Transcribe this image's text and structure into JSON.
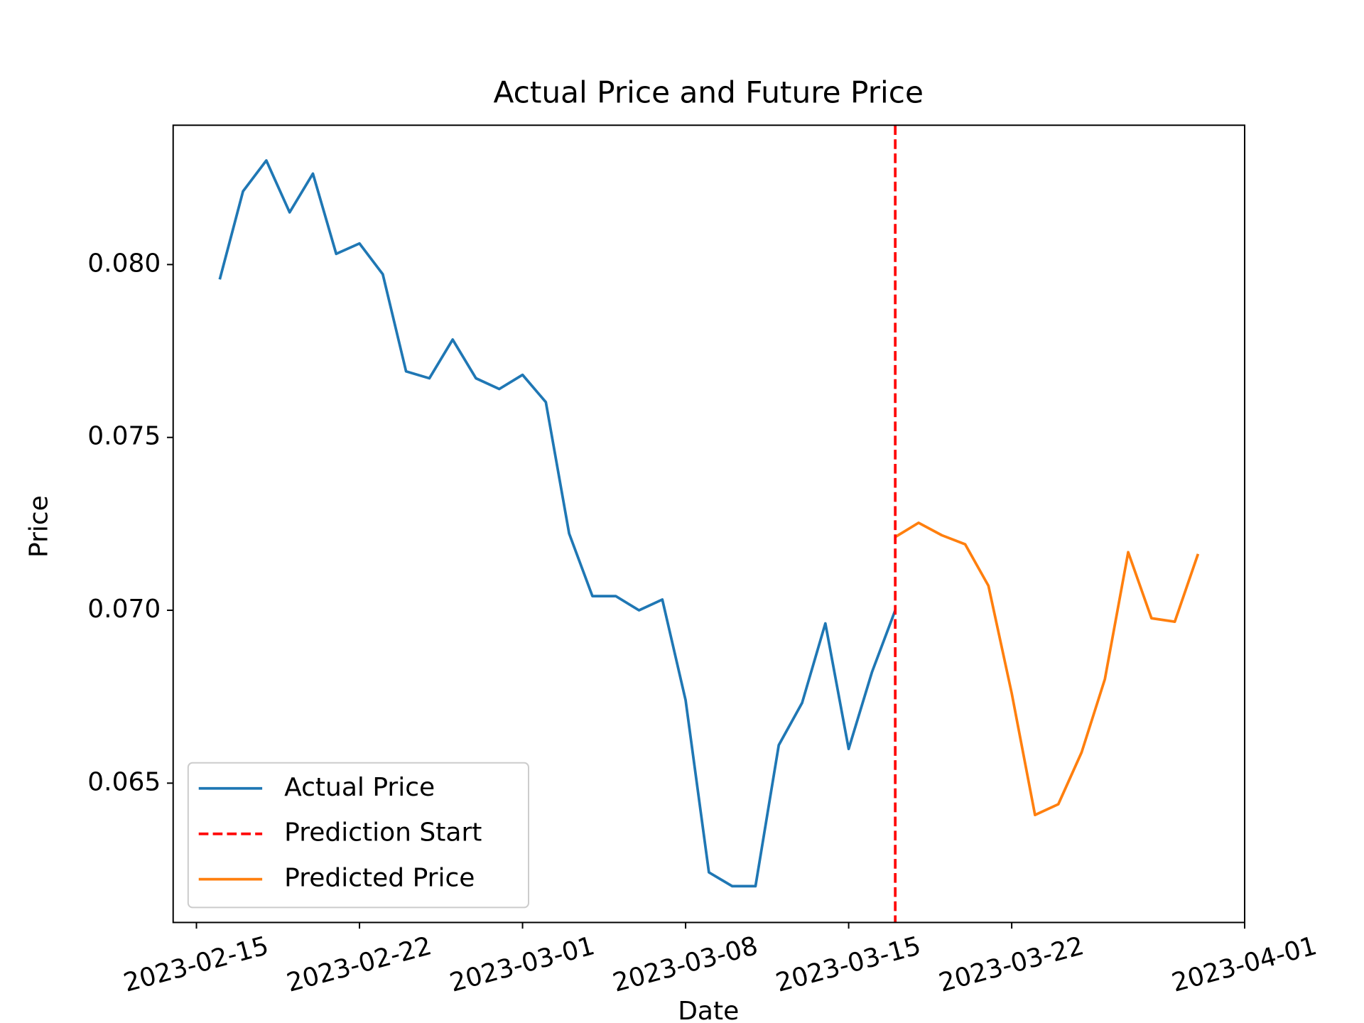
{
  "chart_data": {
    "type": "line",
    "title": "Actual Price and Future Price",
    "x_label": "Date",
    "y_label": "Price",
    "series": [
      {
        "name": "Actual Price",
        "color": "#1f77b4",
        "x": [
          "2023-02-16",
          "2023-02-17",
          "2023-02-18",
          "2023-02-19",
          "2023-02-20",
          "2023-02-21",
          "2023-02-22",
          "2023-02-23",
          "2023-02-24",
          "2023-02-25",
          "2023-02-26",
          "2023-02-27",
          "2023-02-28",
          "2023-03-01",
          "2023-03-02",
          "2023-03-03",
          "2023-03-04",
          "2023-03-05",
          "2023-03-06",
          "2023-03-07",
          "2023-03-08",
          "2023-03-09",
          "2023-03-10",
          "2023-03-11",
          "2023-03-12",
          "2023-03-13",
          "2023-03-14",
          "2023-03-15",
          "2023-03-16",
          "2023-03-17"
        ],
        "values": [
          0.07957,
          0.08212,
          0.08301,
          0.08151,
          0.08263,
          0.08031,
          0.08061,
          0.07972,
          0.07691,
          0.07671,
          0.07783,
          0.07671,
          0.0764,
          0.07681,
          0.07602,
          0.07222,
          0.07041,
          0.07041,
          0.07,
          0.07031,
          0.0674,
          0.06242,
          0.06202,
          0.06202,
          0.0661,
          0.06732,
          0.06962,
          0.06599,
          0.06821,
          0.07
        ]
      },
      {
        "name": "Predicted Price",
        "color": "#ff7f0e",
        "x": [
          "2023-03-17",
          "2023-03-18",
          "2023-03-19",
          "2023-03-20",
          "2023-03-21",
          "2023-03-22",
          "2023-03-23",
          "2023-03-24",
          "2023-03-25",
          "2023-03-26",
          "2023-03-27",
          "2023-03-28",
          "2023-03-29",
          "2023-03-30"
        ],
        "values": [
          0.07212,
          0.07253,
          0.07217,
          0.07191,
          0.07071,
          0.0676,
          0.06408,
          0.06439,
          0.06589,
          0.06801,
          0.07168,
          0.06977,
          0.06967,
          0.07163
        ]
      }
    ],
    "vline": {
      "name": "Prediction Start",
      "x": "2023-03-17",
      "color": "#ff0000"
    },
    "xlim": [
      "2023-02-14",
      "2023-04-01"
    ],
    "xticks": [
      "2023-02-15",
      "2023-02-22",
      "2023-03-01",
      "2023-03-08",
      "2023-03-15",
      "2023-03-22",
      "2023-04-01"
    ],
    "ylim": [
      0.06097,
      0.08403
    ],
    "yticks": [
      {
        "value": 0.065,
        "label": "0.065"
      },
      {
        "value": 0.07,
        "label": "0.070"
      },
      {
        "value": 0.075,
        "label": "0.075"
      },
      {
        "value": 0.08,
        "label": "0.080"
      }
    ],
    "legend": "lower left"
  }
}
